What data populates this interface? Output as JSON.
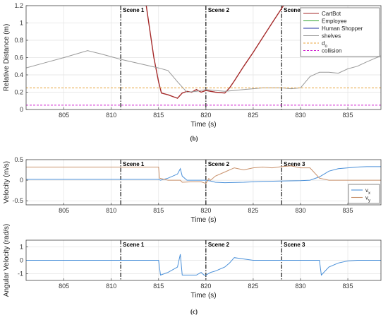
{
  "captions": {
    "b": "(b)",
    "c": "(c)"
  },
  "scenes": [
    {
      "label": "Scene 1",
      "t": 811
    },
    {
      "label": "Scene 2",
      "t": 820
    },
    {
      "label": "Scene 3",
      "t": 828
    }
  ],
  "chart_data": [
    {
      "id": "distance",
      "type": "line",
      "xlabel": "Time (s)",
      "ylabel": "Relative Distance (m)",
      "xlim": [
        801,
        838.5
      ],
      "ylim": [
        0,
        1.2
      ],
      "xticks": [
        805,
        810,
        815,
        820,
        825,
        830,
        835
      ],
      "yticks": [
        0,
        0.2,
        0.4,
        0.6,
        0.8,
        1,
        1.2
      ],
      "grid": true,
      "legend_position": "top-right",
      "legend": [
        {
          "name": "CartBot",
          "color": "#a52a2a",
          "style": "solid"
        },
        {
          "name": "Employee",
          "color": "#2ca02c",
          "style": "solid"
        },
        {
          "name": "Human Shopper",
          "color": "#1f2fa0",
          "style": "solid"
        },
        {
          "name": "shelves",
          "color": "#999999",
          "style": "solid"
        },
        {
          "name": "d",
          "sub": "o",
          "color": "#e8a33a",
          "style": "dashed"
        },
        {
          "name": "collision",
          "color": "#d020d0",
          "style": "dashed"
        }
      ],
      "series": [
        {
          "name": "CartBot",
          "color": "#a52a2a",
          "x": [
            813.7,
            814.5,
            815.0,
            815.3,
            816.0,
            817.0,
            817.5,
            818.0,
            818.5,
            819.0,
            819.5,
            820.0,
            821.0,
            822.0,
            822.5,
            823.0,
            824.0,
            825.0,
            826.0,
            827.0,
            828.2
          ],
          "y": [
            1.2,
            0.6,
            0.32,
            0.19,
            0.17,
            0.13,
            0.19,
            0.21,
            0.2,
            0.23,
            0.2,
            0.22,
            0.2,
            0.19,
            0.25,
            0.33,
            0.5,
            0.66,
            0.83,
            1.0,
            1.2
          ]
        },
        {
          "name": "shelves",
          "color": "#999999",
          "x": [
            801,
            803,
            805,
            807.5,
            809,
            811,
            813,
            815,
            816,
            817,
            818,
            819,
            820,
            821,
            822,
            823,
            824,
            825,
            826,
            827,
            828,
            829,
            830,
            831,
            832,
            833,
            834,
            835,
            836,
            837,
            838.5
          ],
          "y": [
            0.48,
            0.54,
            0.6,
            0.68,
            0.64,
            0.58,
            0.53,
            0.48,
            0.45,
            0.32,
            0.2,
            0.21,
            0.23,
            0.22,
            0.21,
            0.22,
            0.23,
            0.24,
            0.25,
            0.25,
            0.25,
            0.24,
            0.25,
            0.38,
            0.43,
            0.43,
            0.42,
            0.47,
            0.5,
            0.55,
            0.62
          ]
        },
        {
          "name": "d",
          "color": "#e8a33a",
          "dashed": true,
          "x": [
            801,
            838.5
          ],
          "y": [
            0.25,
            0.25
          ]
        },
        {
          "name": "collision",
          "color": "#d020d0",
          "dashed": true,
          "x": [
            801,
            838.5
          ],
          "y": [
            0.05,
            0.05
          ]
        }
      ]
    },
    {
      "id": "velocity",
      "type": "line",
      "xlabel": "Time (s)",
      "ylabel": "Velocity (m/s)",
      "xlim": [
        801,
        838.5
      ],
      "ylim": [
        -0.6,
        0.5
      ],
      "xticks": [
        805,
        810,
        815,
        820,
        825,
        830,
        835
      ],
      "yticks": [
        -0.5,
        0,
        0.5
      ],
      "grid": true,
      "legend_position": "bottom-right",
      "legend": [
        {
          "name": "v",
          "sub": "x",
          "color": "#4a90d9",
          "style": "solid"
        },
        {
          "name": "v",
          "sub": "y",
          "color": "#c8906a",
          "style": "solid"
        }
      ],
      "series": [
        {
          "name": "v_x",
          "color": "#4a90d9",
          "x": [
            801,
            815,
            815.2,
            816,
            817,
            817.3,
            817.5,
            818,
            819,
            820,
            820.5,
            821,
            822,
            824,
            826,
            828,
            830,
            831,
            832,
            832.5,
            833,
            834,
            835,
            836,
            837,
            838.5
          ],
          "y": [
            0.02,
            0.02,
            0.0,
            0.05,
            0.15,
            0.28,
            0.1,
            0.0,
            0.0,
            0.0,
            -0.02,
            -0.05,
            -0.06,
            -0.05,
            -0.03,
            -0.02,
            -0.01,
            0.0,
            0.08,
            0.15,
            0.22,
            0.28,
            0.3,
            0.32,
            0.33,
            0.33
          ]
        },
        {
          "name": "v_y",
          "color": "#c8906a",
          "x": [
            801,
            815,
            815.1,
            816,
            817.3,
            817.5,
            818.5,
            819.5,
            820,
            820.3,
            820.5,
            821,
            822,
            823,
            824,
            825,
            826,
            827,
            828,
            829,
            830,
            831,
            832,
            833,
            835,
            838.5
          ],
          "y": [
            0.32,
            0.32,
            0.05,
            0.0,
            0.0,
            -0.05,
            -0.04,
            -0.04,
            -0.08,
            0.04,
            0.0,
            0.1,
            0.2,
            0.3,
            0.25,
            0.3,
            0.32,
            0.3,
            0.33,
            0.35,
            0.3,
            0.3,
            0.05,
            0.0,
            0.0,
            0.0
          ]
        }
      ]
    },
    {
      "id": "angular",
      "type": "line",
      "xlabel": "Time (s)",
      "ylabel": "Angular Velocity (rad/s)",
      "xlim": [
        801,
        838.5
      ],
      "ylim": [
        -1.5,
        1.5
      ],
      "xticks": [
        805,
        810,
        815,
        820,
        825,
        830,
        835
      ],
      "yticks": [
        -1,
        0,
        1
      ],
      "grid": true,
      "series": [
        {
          "name": "omega",
          "color": "#4a90d9",
          "x": [
            801,
            815,
            815.2,
            816,
            817,
            817.3,
            817.5,
            818,
            819,
            819.5,
            819.8,
            820,
            820.5,
            821,
            822,
            822.5,
            823,
            824,
            825,
            826,
            827,
            828,
            829,
            830,
            831,
            832,
            832.2,
            833,
            834,
            835,
            836,
            838.5
          ],
          "y": [
            0.0,
            0.0,
            -1.1,
            -0.9,
            -0.5,
            0.45,
            -1.1,
            -1.1,
            -1.1,
            -0.9,
            -1.1,
            -1.1,
            -0.9,
            -0.8,
            -0.5,
            -0.2,
            0.2,
            0.1,
            0.0,
            0.0,
            0.0,
            0.0,
            0.0,
            0.0,
            0.0,
            0.0,
            -1.1,
            -0.5,
            -0.2,
            -0.05,
            0.0,
            0.0
          ]
        }
      ]
    }
  ]
}
